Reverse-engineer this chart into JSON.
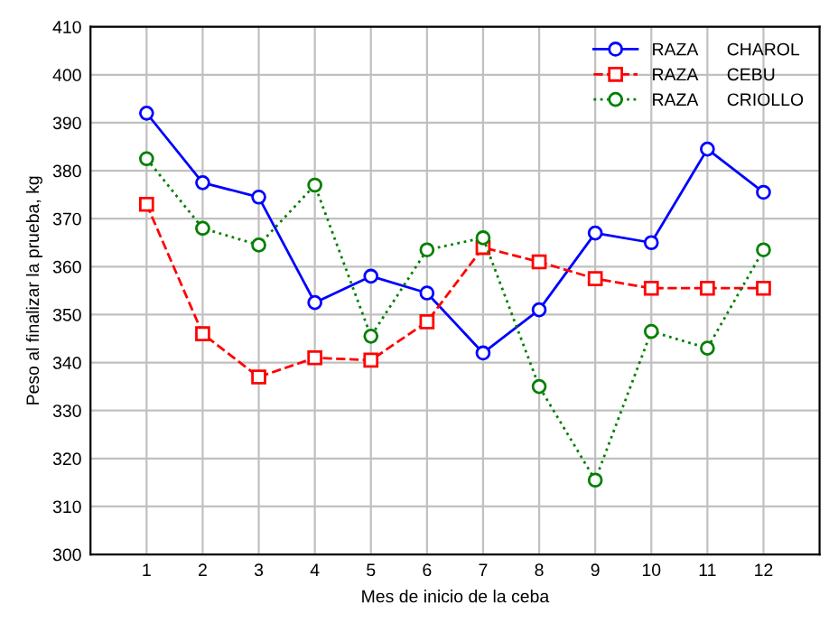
{
  "chart_data": {
    "type": "line",
    "xlabel": "Mes de inicio de la ceba",
    "ylabel": "Peso al finalizar la prueba, kg",
    "x": [
      1,
      2,
      3,
      4,
      5,
      6,
      7,
      8,
      9,
      10,
      11,
      12
    ],
    "xlim": [
      0,
      13
    ],
    "xticks": [
      1,
      2,
      3,
      4,
      5,
      6,
      7,
      8,
      9,
      10,
      11,
      12
    ],
    "ylim": [
      300,
      410
    ],
    "yticks": [
      300,
      310,
      320,
      330,
      340,
      350,
      360,
      370,
      380,
      390,
      400,
      410
    ],
    "grid": true,
    "legend": "top right",
    "series": [
      {
        "name": "RAZA      CHAROL",
        "color": "#0000ff",
        "marker": "circle",
        "line_style": "solid",
        "values": [
          392,
          377.5,
          374.5,
          352.5,
          358,
          354.5,
          342,
          351,
          367,
          365,
          384.5,
          375.5
        ]
      },
      {
        "name": "RAZA      CEBU",
        "color": "#ff0000",
        "marker": "square",
        "line_style": "dashed",
        "values": [
          373,
          346,
          337,
          341,
          340.5,
          348.5,
          364,
          361,
          357.5,
          355.5,
          355.5,
          355.5
        ]
      },
      {
        "name": "RAZA      CRIOLLO",
        "color": "#008000",
        "marker": "circle",
        "line_style": "dotted",
        "values": [
          382.5,
          368,
          364.5,
          377,
          345.5,
          363.5,
          366,
          335,
          315.5,
          346.5,
          343,
          363.5
        ]
      }
    ]
  }
}
